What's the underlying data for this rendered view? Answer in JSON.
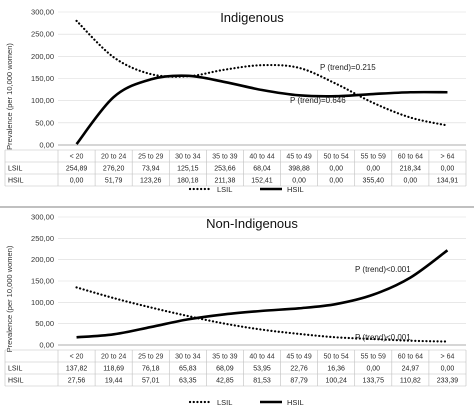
{
  "chart_data": [
    {
      "type": "line",
      "title": "Indigenous",
      "ylabel": "Prevalence (per 10,000 women)",
      "ylim": [
        0,
        300
      ],
      "yticks": [
        "0,00",
        "50,00",
        "100,00",
        "150,00",
        "200,00",
        "250,00",
        "300,00"
      ],
      "categories": [
        "< 20",
        "20 to 24",
        "25 to 29",
        "30 to 34",
        "35 to 39",
        "40 to 44",
        "45 to 49",
        "50 to 54",
        "55 to 59",
        "60 to 64",
        "> 64"
      ],
      "series": [
        {
          "name": "LSIL",
          "style": "dotted",
          "table_label": "LSIL",
          "table_values": [
            "254,89",
            "276,20",
            "73,94",
            "125,15",
            "253,66",
            "68,04",
            "398,88",
            "0,00",
            "0,00",
            "218,34",
            "0,00"
          ],
          "trend_values": [
            280,
            198,
            160,
            155,
            170,
            180,
            174,
            138,
            95,
            62,
            44
          ],
          "annotation": "P (trend)=0.215"
        },
        {
          "name": "HSIL",
          "style": "solid",
          "table_label": "HSIL",
          "table_values": [
            "0,00",
            "51,79",
            "123,26",
            "180,18",
            "211,38",
            "152,41",
            "0,00",
            "0,00",
            "355,40",
            "0,00",
            "134,91"
          ],
          "trend_values": [
            2,
            108,
            148,
            156,
            142,
            124,
            112,
            110,
            115,
            119,
            119
          ],
          "annotation": "P (trend)=0.646"
        }
      ]
    },
    {
      "type": "line",
      "title": "Non-Indigenous",
      "ylabel": "Prevalence (per 10,000 women)",
      "ylim": [
        0,
        300
      ],
      "yticks": [
        "0,00",
        "50,00",
        "100,00",
        "150,00",
        "200,00",
        "250,00",
        "300,00"
      ],
      "categories": [
        "< 20",
        "20 to 24",
        "25 to 29",
        "30 to 34",
        "35 to 39",
        "40 to 44",
        "45 to 49",
        "50 to 54",
        "55 to 59",
        "60 to 64",
        "> 64"
      ],
      "series": [
        {
          "name": "LSIL",
          "style": "dotted",
          "table_label": "LSIL",
          "table_values": [
            "137,82",
            "118,69",
            "76,18",
            "65,83",
            "68,09",
            "53,95",
            "22,76",
            "16,36",
            "0,00",
            "24,97",
            "0,00"
          ],
          "trend_values": [
            135,
            110,
            88,
            68,
            50,
            36,
            26,
            18,
            14,
            10,
            8
          ],
          "annotation": "P (trend)<0.001"
        },
        {
          "name": "HSIL",
          "style": "solid",
          "table_label": "HSIL",
          "table_values": [
            "27,56",
            "19,44",
            "57,01",
            "63,35",
            "42,85",
            "81,53",
            "87,79",
            "100,24",
            "133,75",
            "110,82",
            "233,39"
          ],
          "trend_values": [
            18,
            25,
            42,
            60,
            72,
            80,
            86,
            96,
            118,
            158,
            222
          ],
          "annotation": "P (trend)<0.001"
        }
      ],
      "legend": "top-center"
    }
  ]
}
